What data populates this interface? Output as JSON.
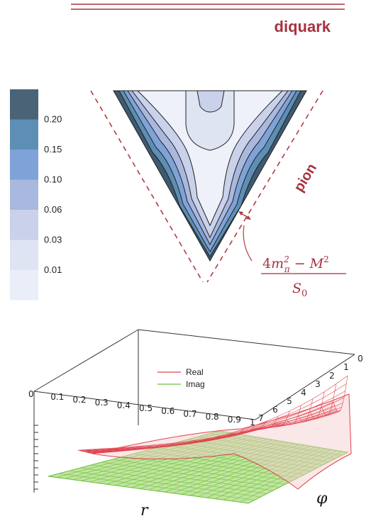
{
  "header": {
    "title": "diquark"
  },
  "colorbar": {
    "levels": [
      "0.20",
      "0.15",
      "0.10",
      "0.06",
      "0.03",
      "0.01"
    ],
    "colors": [
      "#4a6377",
      "#5d8fb5",
      "#7fa3d8",
      "#a9b8de",
      "#c9d2ea",
      "#dfe4f3",
      "#eaeef8"
    ]
  },
  "triangle_plot": {
    "side_label": "pion",
    "annotation": {
      "numerator": "4m²π − M²",
      "numerator_base": "4",
      "numerator_m": "m",
      "numerator_sup": "2",
      "numerator_sub": "π",
      "numerator_rest": " − M",
      "numerator_sup2": "2",
      "denominator_S": "S",
      "denominator_sub": "0"
    },
    "line_color": "#b23a45"
  },
  "surface_plot": {
    "legend": [
      {
        "name": "Real",
        "color": "#e0434f"
      },
      {
        "name": "Imag",
        "color": "#6fbf3a"
      }
    ],
    "r_ticks": [
      "0",
      "0.1",
      "0.2",
      "0.3",
      "0.4",
      "0.5",
      "0.6",
      "0.7",
      "0.8",
      "0.9",
      "1"
    ],
    "phi_ticks": [
      "0",
      "1",
      "2",
      "3",
      "4",
      "5",
      "6",
      "7"
    ],
    "x_label": "r",
    "y_label": "φ"
  }
}
